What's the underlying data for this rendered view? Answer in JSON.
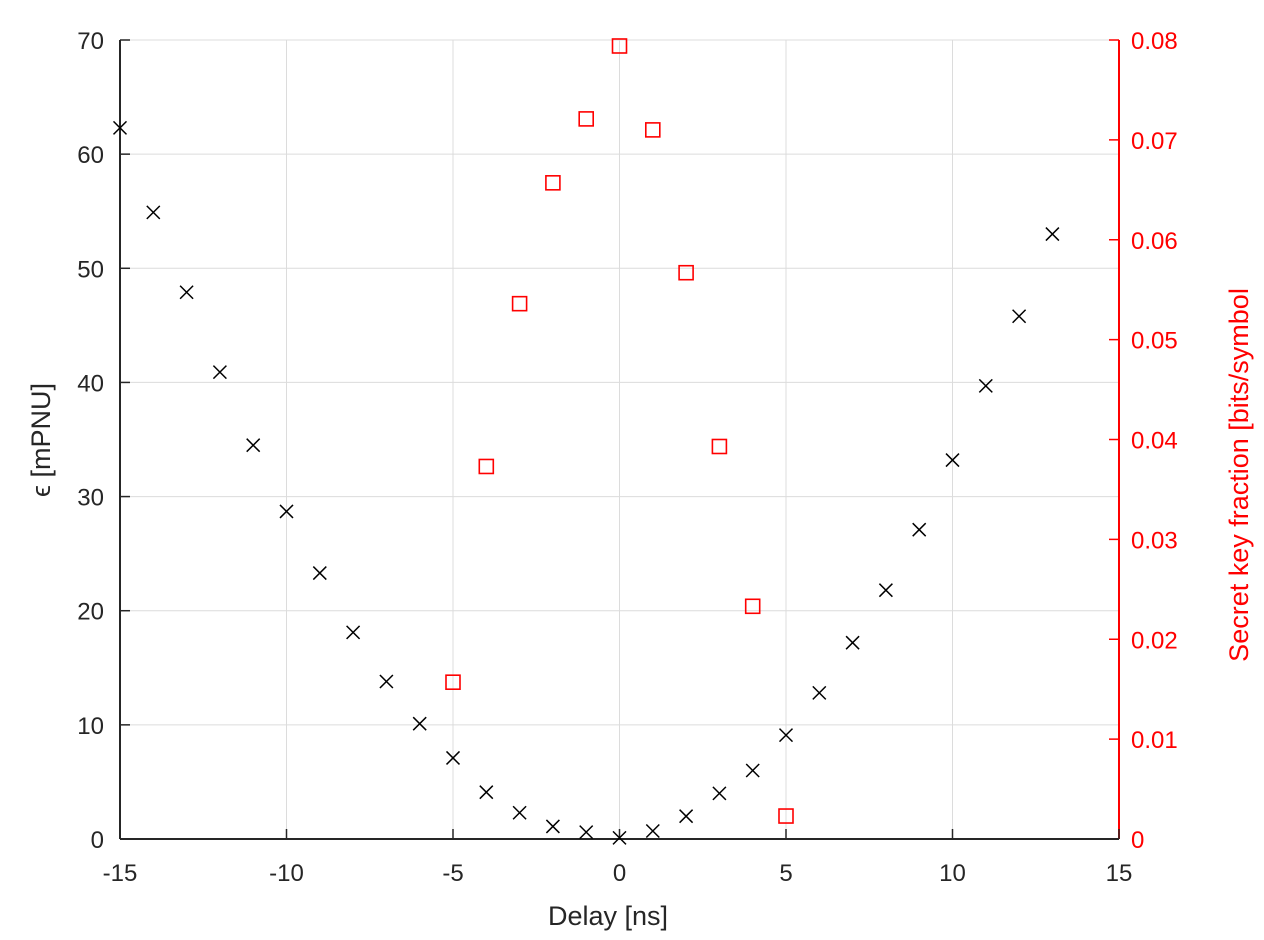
{
  "colors": {
    "left_axis": "#262626",
    "right_axis": "#ff0000",
    "grid": "#dcdcdc",
    "series_epsilon": "#000000",
    "series_skf": "#ff0000"
  },
  "chart_data": {
    "type": "scatter",
    "title": "",
    "xlabel": "Delay [ns]",
    "ylabel": "ϵ [mPNU]",
    "ylabel_right": "Secret key fraction [bits/symbol",
    "xlim": [
      -15,
      15
    ],
    "ylim": [
      0,
      70
    ],
    "ylim_right": [
      0,
      0.08
    ],
    "xticks": [
      "-15",
      "-10",
      "-5",
      "0",
      "5",
      "10",
      "15"
    ],
    "yticks": [
      "0",
      "10",
      "20",
      "30",
      "40",
      "50",
      "60",
      "70"
    ],
    "yticks_right": [
      "0",
      "0.01",
      "0.02",
      "0.03",
      "0.04",
      "0.05",
      "0.06",
      "0.07",
      "0.08"
    ],
    "grid": true,
    "legend": null,
    "series": [
      {
        "name": "epsilon",
        "axis": "left",
        "marker": "x",
        "color": "#000000",
        "x": [
          -15,
          -14,
          -13,
          -12,
          -11,
          -10,
          -9,
          -8,
          -7,
          -6,
          -5,
          -4,
          -3,
          -2,
          -1,
          0,
          1,
          2,
          3,
          4,
          5,
          6,
          7,
          8,
          9,
          10,
          11,
          12,
          13
        ],
        "y": [
          62.3,
          54.9,
          47.9,
          40.9,
          34.5,
          28.7,
          23.3,
          18.1,
          13.8,
          10.1,
          7.1,
          4.1,
          2.3,
          1.1,
          0.6,
          0.1,
          0.7,
          2.0,
          4.0,
          6.0,
          9.1,
          12.8,
          17.2,
          21.8,
          27.1,
          33.2,
          39.7,
          45.8,
          53.0
        ]
      },
      {
        "name": "secret key fraction",
        "axis": "right",
        "marker": "square",
        "color": "#ff0000",
        "x": [
          -5,
          -4,
          -3,
          -2,
          -1,
          0,
          1,
          2,
          3,
          4,
          5
        ],
        "y": [
          0.0157,
          0.0373,
          0.0536,
          0.0657,
          0.0721,
          0.0794,
          0.071,
          0.0567,
          0.0393,
          0.0233,
          0.0023
        ]
      }
    ]
  }
}
